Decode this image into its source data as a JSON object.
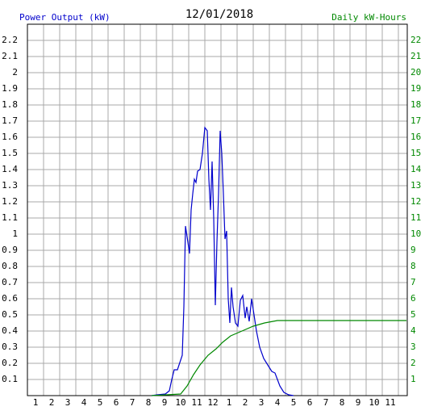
{
  "chart_data": {
    "type": "line",
    "title": "12/01/2018",
    "y_label": "Power Output (kW)",
    "y2_label": "Daily kW-Hours",
    "y_label_color": "#0000cc",
    "y2_label_color": "#008800",
    "grid": true,
    "xlim": [
      0.5,
      24.05
    ],
    "xticks": [
      1,
      2,
      3,
      4,
      5,
      6,
      7,
      8,
      9,
      10,
      11,
      12,
      {
        "value": 13,
        "label": "1"
      },
      {
        "value": 14,
        "label": "2"
      },
      {
        "value": 15,
        "label": "3"
      },
      {
        "value": 16,
        "label": "4"
      },
      {
        "value": 17,
        "label": "5"
      },
      {
        "value": 18,
        "label": "6"
      },
      {
        "value": 19,
        "label": "7"
      },
      {
        "value": 20,
        "label": "8"
      },
      {
        "value": 21,
        "label": "9"
      },
      {
        "value": 22,
        "label": "10"
      },
      {
        "value": 23,
        "label": "11"
      }
    ],
    "ylim": [
      0,
      2.3
    ],
    "yticks": [
      0.1,
      0.2,
      0.3,
      0.4,
      0.5,
      0.6,
      0.7,
      0.8,
      0.9,
      1.0,
      1.1,
      1.2,
      1.3,
      1.4,
      1.5,
      1.6,
      1.7,
      1.8,
      1.9,
      2.0,
      2.1,
      2.2
    ],
    "y2lim": [
      0,
      23
    ],
    "y2ticks": [
      1,
      2,
      3,
      4,
      5,
      6,
      7,
      8,
      9,
      10,
      11,
      12,
      13,
      14,
      15,
      16,
      17,
      18,
      19,
      20,
      21,
      22
    ],
    "series": [
      {
        "name": "Power Output",
        "color": "#0000cc",
        "x": [
          8.2,
          8.55,
          9.05,
          9.3,
          9.45,
          9.6,
          9.8,
          10.0,
          10.1,
          10.2,
          10.3,
          10.45,
          10.55,
          10.65,
          10.75,
          10.85,
          10.95,
          11.05,
          11.2,
          11.35,
          11.5,
          11.65,
          11.75,
          11.85,
          11.95,
          12.05,
          12.15,
          12.25,
          12.35,
          12.45,
          12.55,
          12.65,
          12.75,
          12.85,
          12.95,
          13.05,
          13.15,
          13.25,
          13.4,
          13.55,
          13.7,
          13.85,
          14.0,
          14.1,
          14.25,
          14.4,
          14.55,
          14.7,
          14.9,
          15.15,
          15.4,
          15.65,
          15.85,
          16.0,
          16.15,
          16.4,
          16.7,
          17.0
        ],
        "values": [
          0,
          0.005,
          0.01,
          0.03,
          0.1,
          0.16,
          0.16,
          0.22,
          0.25,
          0.55,
          1.05,
          0.95,
          0.88,
          1.15,
          1.25,
          1.34,
          1.32,
          1.39,
          1.4,
          1.5,
          1.66,
          1.64,
          1.34,
          1.15,
          1.45,
          1.1,
          0.56,
          0.95,
          1.25,
          1.64,
          1.5,
          1.25,
          0.97,
          1.02,
          0.6,
          0.45,
          0.67,
          0.55,
          0.45,
          0.43,
          0.59,
          0.62,
          0.48,
          0.55,
          0.46,
          0.6,
          0.5,
          0.4,
          0.3,
          0.23,
          0.19,
          0.15,
          0.14,
          0.1,
          0.06,
          0.02,
          0.005,
          0
        ]
      },
      {
        "name": "Daily kW-Hours",
        "color": "#008800",
        "axis": "y2",
        "x": [
          8.2,
          10.0,
          10.4,
          10.8,
          11.2,
          11.7,
          12.2,
          12.6,
          13.1,
          13.8,
          14.5,
          15.2,
          16.0,
          17.0,
          24.0
        ],
        "values": [
          0,
          0.1,
          0.6,
          1.3,
          1.9,
          2.5,
          2.9,
          3.3,
          3.7,
          4.0,
          4.3,
          4.5,
          4.65,
          4.65,
          4.65
        ]
      }
    ]
  }
}
